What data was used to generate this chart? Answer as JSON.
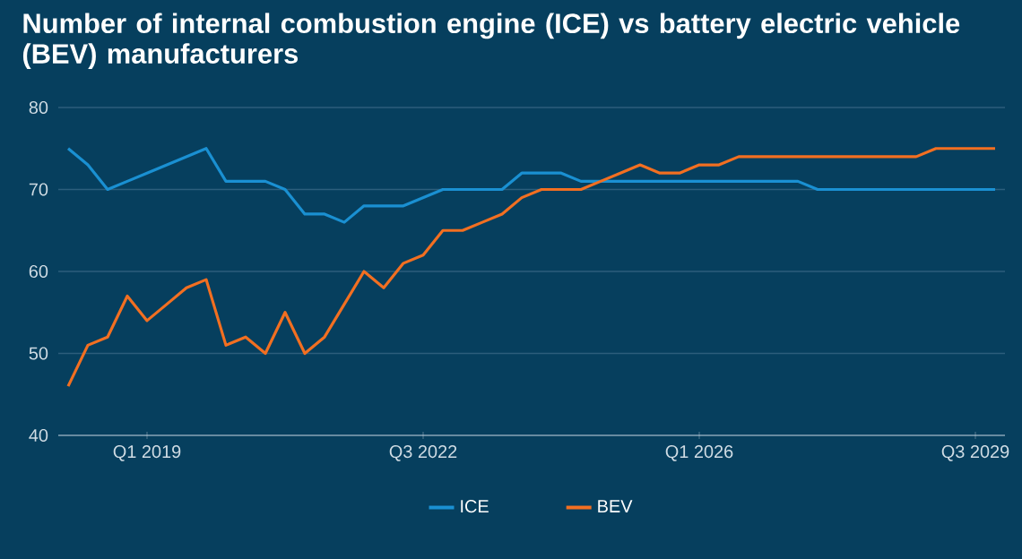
{
  "chart_data": {
    "type": "line",
    "title": "Number of internal combustion engine (ICE) vs battery electric vehicle (BEV) manufacturers",
    "categories": [
      null,
      null,
      null,
      null,
      "Q1 2019",
      null,
      null,
      null,
      null,
      null,
      null,
      null,
      null,
      null,
      null,
      null,
      null,
      null,
      "Q3 2022",
      null,
      null,
      null,
      null,
      null,
      null,
      null,
      null,
      null,
      null,
      null,
      null,
      null,
      "Q1 2026",
      null,
      null,
      null,
      null,
      null,
      null,
      null,
      null,
      null,
      null,
      null,
      null,
      null,
      "Q3 2029",
      null
    ],
    "series": [
      {
        "name": "ICE",
        "color": "#1a90d2",
        "values": [
          75,
          73,
          70,
          71,
          72,
          73,
          74,
          75,
          71,
          71,
          71,
          70,
          67,
          67,
          66,
          68,
          68,
          68,
          69,
          70,
          70,
          70,
          70,
          72,
          72,
          72,
          71,
          71,
          71,
          71,
          71,
          71,
          71,
          71,
          71,
          71,
          71,
          71,
          70,
          70,
          70,
          70,
          70,
          70,
          70,
          70,
          70,
          70
        ]
      },
      {
        "name": "BEV",
        "color": "#f26f21",
        "values": [
          46,
          51,
          52,
          57,
          54,
          56,
          58,
          59,
          51,
          52,
          50,
          55,
          50,
          52,
          56,
          60,
          58,
          61,
          62,
          65,
          65,
          66,
          67,
          69,
          70,
          70,
          70,
          71,
          72,
          73,
          72,
          72,
          73,
          73,
          74,
          74,
          74,
          74,
          74,
          74,
          74,
          74,
          74,
          74,
          75,
          75,
          75,
          75
        ]
      }
    ],
    "ylim": [
      40,
      80
    ],
    "yticks": [
      40,
      50,
      60,
      70,
      80
    ],
    "grid": "y",
    "legend": "bottom"
  }
}
